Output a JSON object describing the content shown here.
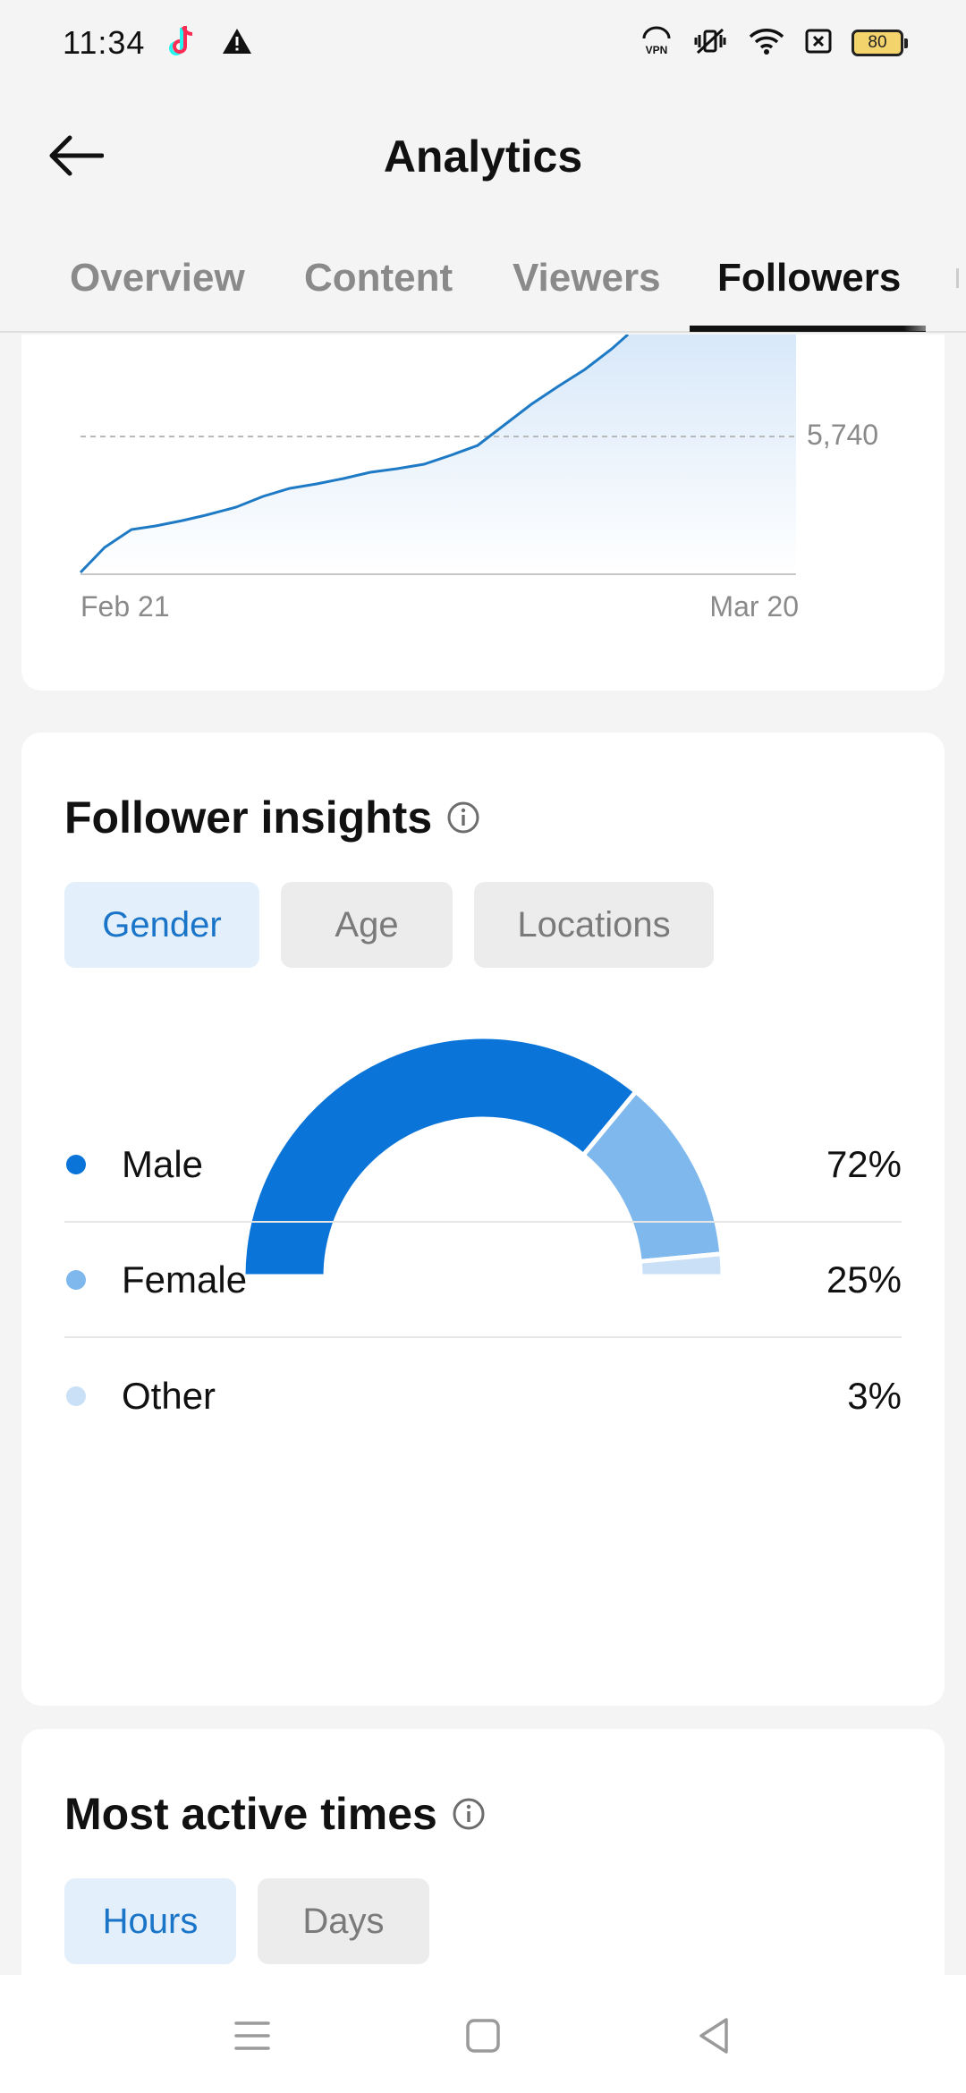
{
  "status_bar": {
    "time": "11:34",
    "battery": "80",
    "left_icons": [
      "tiktok-icon",
      "warning-icon"
    ],
    "right_icons": [
      "vpn-icon",
      "vibrate-icon",
      "wifi-icon",
      "sim-icon",
      "battery-icon"
    ]
  },
  "header": {
    "title": "Analytics",
    "back_icon": "arrow-left-icon"
  },
  "tabs": [
    {
      "label": "Overview",
      "active": false
    },
    {
      "label": "Content",
      "active": false
    },
    {
      "label": "Viewers",
      "active": false
    },
    {
      "label": "Followers",
      "active": true
    }
  ],
  "follower_chart": {
    "reference_label": "5,740",
    "x_start_label": "Feb 21",
    "x_end_label": "Mar 20"
  },
  "chart_data": [
    {
      "type": "area",
      "x_labels": [
        "Feb 21",
        "Mar 20"
      ],
      "reference_line": 5740,
      "reference_label": "5,740",
      "line_color": "#1f7ac6",
      "fill_color": "#e6f0fb",
      "note_visible": "chart top is scrolled out of view; values are relative positions only"
    },
    {
      "type": "pie",
      "variant": "semi-donut",
      "categories": [
        "Male",
        "Female",
        "Other"
      ],
      "values": [
        72,
        25,
        3
      ],
      "colors": [
        "#0a74d8",
        "#7fb8ec",
        "#c9e0f6"
      ]
    }
  ],
  "insights": {
    "title": "Follower insights",
    "info_icon": "info-icon",
    "chips": [
      {
        "label": "Gender",
        "active": true
      },
      {
        "label": "Age",
        "active": false
      },
      {
        "label": "Locations",
        "active": false
      }
    ],
    "legend": [
      {
        "name": "Male",
        "value": "72%",
        "color": "#0a74d8"
      },
      {
        "name": "Female",
        "value": "25%",
        "color": "#7fb8ec"
      },
      {
        "name": "Other",
        "value": "3%",
        "color": "#c9e0f6"
      }
    ]
  },
  "active_times": {
    "title": "Most active times",
    "info_icon": "info-icon",
    "chips": [
      {
        "label": "Hours",
        "active": true
      },
      {
        "label": "Days",
        "active": false
      }
    ]
  },
  "nav_bar": {
    "buttons": [
      "menu-icon",
      "home-icon",
      "back-triangle-icon"
    ]
  }
}
